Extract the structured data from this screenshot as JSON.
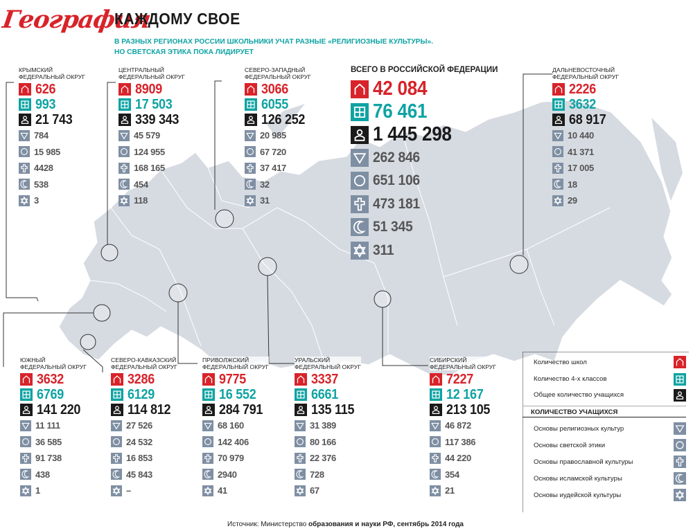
{
  "header": {
    "logo": "География",
    "title": "КАЖДОМУ СВОЕ",
    "subtitle_1": "В РАЗНЫХ РЕГИОНАХ РОССИИ ШКОЛЬНИКИ УЧАТ РАЗНЫЕ «РЕЛИГИОЗНЫЕ КУЛЬТУРЫ».",
    "subtitle_2": "НО СВЕТСКАЯ ЭТИКА ПОКА ЛИДИРУЕТ"
  },
  "icons": [
    "school-icon",
    "classes-icon",
    "students-icon",
    "religions-icon",
    "ethics-icon",
    "orthodox-icon",
    "islam-icon",
    "judaism-icon"
  ],
  "colors": {
    "red": "#d8232a",
    "teal": "#0fa3a3",
    "black": "#1a1a1a",
    "grey": "#7f8fa3",
    "map": "#d6dbe2"
  },
  "total": {
    "title": "ВСЕГО В РОССИЙСКОЙ ФЕДЕРАЦИИ",
    "values": [
      "42 084",
      "76 461",
      "1 445 298",
      "262 846",
      "651 106",
      "473 181",
      "51 345",
      "311"
    ]
  },
  "regions": [
    {
      "id": "crimea",
      "name_1": "КРЫМСКИЙ",
      "name_2": "ФЕДЕРАЛЬНЫЙ ОКРУГ",
      "values": [
        "626",
        "993",
        "21 743",
        "784",
        "15 985",
        "4428",
        "538",
        "3"
      ]
    },
    {
      "id": "central",
      "name_1": "ЦЕНТРАЛЬНЫЙ",
      "name_2": "ФЕДЕРАЛЬНЫЙ ОКРУГ",
      "values": [
        "8909",
        "17 503",
        "339 343",
        "45 579",
        "124 955",
        "168 165",
        "454",
        "118"
      ]
    },
    {
      "id": "northwest",
      "name_1": "СЕВЕРО-ЗАПАДНЫЙ",
      "name_2": "ФЕДЕРАЛЬНЫЙ ОКРУГ",
      "values": [
        "3066",
        "6055",
        "126 252",
        "20 985",
        "67 720",
        "37 417",
        "32",
        "31"
      ]
    },
    {
      "id": "fareast",
      "name_1": "ДАЛЬНЕВОСТОЧНЫЙ",
      "name_2": "ФЕДЕРАЛЬНЫЙ ОКРУГ",
      "values": [
        "2226",
        "3632",
        "68 917",
        "10 440",
        "41 371",
        "17 005",
        "18",
        "29"
      ]
    },
    {
      "id": "south",
      "name_1": "ЮЖНЫЙ",
      "name_2": "ФЕДЕРАЛЬНЫЙ ОКРУГ",
      "values": [
        "3632",
        "6769",
        "141 220",
        "11 111",
        "36 585",
        "91 738",
        "438",
        "1"
      ]
    },
    {
      "id": "ncaucasus",
      "name_1": "СЕВЕРО-КАВКАЗСКИЙ",
      "name_2": "ФЕДЕРАЛЬНЫЙ ОКРУГ",
      "values": [
        "3286",
        "6129",
        "114 812",
        "27 526",
        "24 532",
        "16 853",
        "45 843",
        "–"
      ]
    },
    {
      "id": "volga",
      "name_1": "ПРИВОЛЖСКИЙ",
      "name_2": "ФЕДЕРАЛЬНЫЙ ОКРУГ",
      "values": [
        "9775",
        "16 552",
        "284 791",
        "68 160",
        "142 406",
        "70 979",
        "2940",
        "41"
      ]
    },
    {
      "id": "ural",
      "name_1": "УРАЛЬСКИЙ",
      "name_2": "ФЕДЕРАЛЬНЫЙ ОКРУГ",
      "values": [
        "3337",
        "6661",
        "135 115",
        "31 389",
        "80 166",
        "22 376",
        "728",
        "67"
      ]
    },
    {
      "id": "siberia",
      "name_1": "СИБИРСКИЙ",
      "name_2": "ФЕДЕРАЛЬНЫЙ ОКРУГ",
      "values": [
        "7227",
        "12 167",
        "213 105",
        "46 872",
        "117 386",
        "44 220",
        "354",
        "21"
      ]
    }
  ],
  "legend": {
    "schools": "Количество школ",
    "classes": "Количество 4-х классов",
    "students": "Общее количество учащихся",
    "heading": "КОЛИЧЕСТВО УЧАЩИХСЯ",
    "religions": "Основы религиозных культур",
    "ethics": "Основы светской этики",
    "orthodox": "Основы православной культуры",
    "islam": "Основы исламской культуры",
    "judaism": "Основы иудейской культуры"
  },
  "source": {
    "prefix": "Источник: Министерство",
    "bold": "образования и науки РФ, сентябрь 2014 года"
  }
}
